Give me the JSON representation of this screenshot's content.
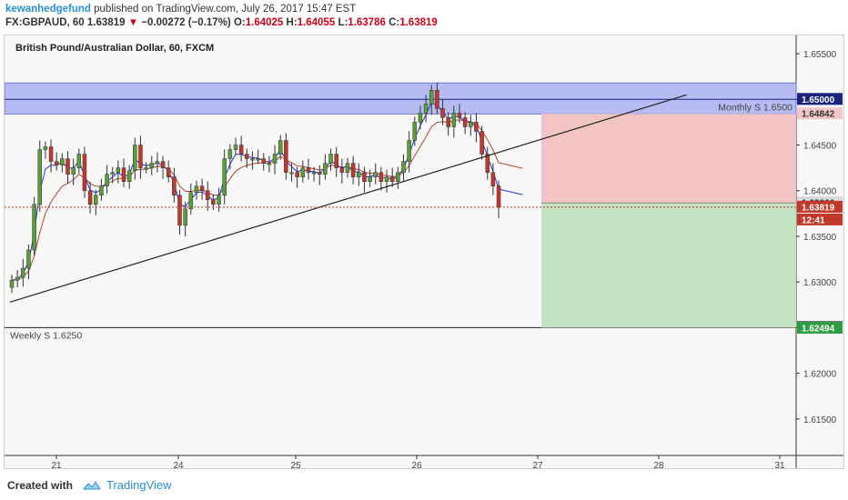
{
  "header": {
    "author": "kewanhedgefund",
    "published": "published on TradingView.com, July 26, 2017 15:47 EST",
    "symbol": "FX:GBPAUD, 60",
    "last": "1.63819",
    "change_arrow": "▼",
    "change": "−0.00272 (−0.17%)",
    "o_label": "O:",
    "o": "1.64025",
    "h_label": "H:",
    "h": "1.64055",
    "l_label": "L:",
    "l": "1.63786",
    "c_label": "C:",
    "c": "1.63819"
  },
  "footer": {
    "created_with": "Created with",
    "brand": "TradingView"
  },
  "colors": {
    "up": "#5a9e3a",
    "down": "#c0392b",
    "ema_fast": "#2233dd",
    "ema_slow": "#b5452c",
    "zone_blue": "#9aa3f0",
    "stop_zone": "#f2c4c4",
    "target_zone": "#c3e3c3"
  },
  "chart_data": {
    "type": "candlestick",
    "title": "British Pound/Australian Dollar, 60, FXCM",
    "ylim": [
      1.611,
      1.657
    ],
    "y_ticks": [
      "1.65500",
      "1.65000",
      "1.64500",
      "1.64000",
      "1.63500",
      "1.63000",
      "1.62500",
      "1.62000",
      "1.61500"
    ],
    "x_ticks": [
      "21",
      "24",
      "25",
      "26",
      "27",
      "28",
      "31"
    ],
    "annotations": {
      "monthly_label": "Monthly S 1.6500",
      "weekly_label": "Weekly S 1.6250",
      "monthly_level": 1.65,
      "weekly_level": 1.625,
      "supply_zone": [
        1.6484,
        1.6518
      ],
      "stop_zone": [
        1.63866,
        1.64842
      ],
      "target_zone": [
        1.625,
        1.63866
      ],
      "trendline": [
        [
          0,
          1.6278
        ],
        [
          44.5,
          1.6505
        ]
      ]
    },
    "price_labels": [
      {
        "value": "1.65000",
        "level": 1.65,
        "style": "navy"
      },
      {
        "value": "1.64842",
        "level": 1.64842,
        "style": "pink"
      },
      {
        "value": "1.63866",
        "level": 1.63866,
        "style": "grey"
      },
      {
        "value": "1.63819",
        "level": 1.63819,
        "style": "red"
      },
      {
        "value": "12:41",
        "level": 1.6368,
        "style": "red"
      },
      {
        "value": "1.62500",
        "level": 1.625,
        "style": "dark"
      },
      {
        "value": "1.62494",
        "level": 1.62494,
        "style": "green"
      }
    ],
    "last_price": 1.63819,
    "close": [
      1.6302,
      1.6305,
      1.6315,
      1.6335,
      1.6385,
      1.6445,
      1.6448,
      1.6432,
      1.6428,
      1.6435,
      1.6418,
      1.6425,
      1.644,
      1.64,
      1.6385,
      1.6395,
      1.6405,
      1.6418,
      1.642,
      1.6425,
      1.641,
      1.6422,
      1.645,
      1.6425,
      1.6425,
      1.643,
      1.6432,
      1.6425,
      1.6415,
      1.6395,
      1.6362,
      1.638,
      1.6398,
      1.6405,
      1.64,
      1.639,
      1.6385,
      1.6395,
      1.6435,
      1.6445,
      1.645,
      1.644,
      1.6435,
      1.6435,
      1.6435,
      1.643,
      1.643,
      1.644,
      1.6455,
      1.642,
      1.642,
      1.6415,
      1.6425,
      1.642,
      1.642,
      1.6418,
      1.643,
      1.644,
      1.6425,
      1.642,
      1.643,
      1.6415,
      1.642,
      1.641,
      1.6415,
      1.642,
      1.641,
      1.6415,
      1.641,
      1.642,
      1.6432,
      1.6455,
      1.6475,
      1.6485,
      1.6495,
      1.651,
      1.649,
      1.648,
      1.647,
      1.6485,
      1.648,
      1.647,
      1.6475,
      1.6465,
      1.644,
      1.642,
      1.6405,
      1.6382
    ]
  }
}
